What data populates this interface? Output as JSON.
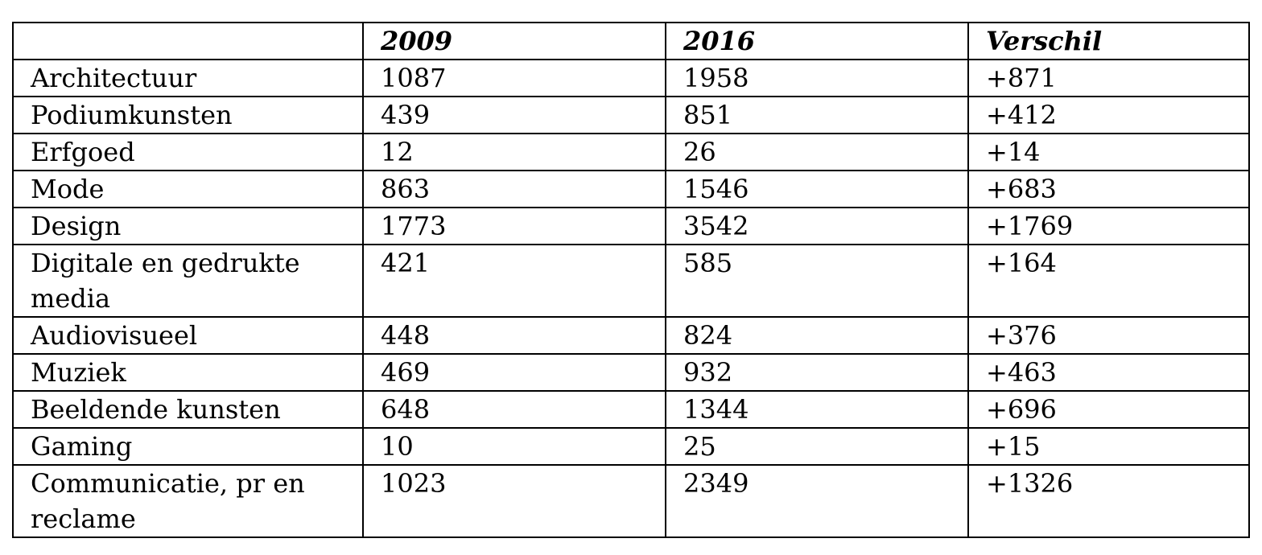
{
  "table": {
    "headers": [
      "",
      "2009",
      "2016",
      "Verschil"
    ],
    "rows": [
      [
        "Architectuur",
        "1087",
        "1958",
        "+871"
      ],
      [
        "Podiumkunsten",
        "439",
        "851",
        "+412"
      ],
      [
        "Erfgoed",
        "12",
        "26",
        "+14"
      ],
      [
        "Mode",
        "863",
        "1546",
        "+683"
      ],
      [
        "Design",
        "1773",
        "3542",
        "+1769"
      ],
      [
        "Digitale en gedrukte media",
        "421",
        "585",
        "+164"
      ],
      [
        "Audiovisueel",
        "448",
        "824",
        "+376"
      ],
      [
        "Muziek",
        "469",
        "932",
        "+463"
      ],
      [
        "Beeldende kunsten",
        "648",
        "1344",
        "+696"
      ],
      [
        "Gaming",
        "10",
        "25",
        "+15"
      ],
      [
        "Communicatie, pr en reclame",
        "1023",
        "2349",
        "+1326"
      ]
    ]
  }
}
